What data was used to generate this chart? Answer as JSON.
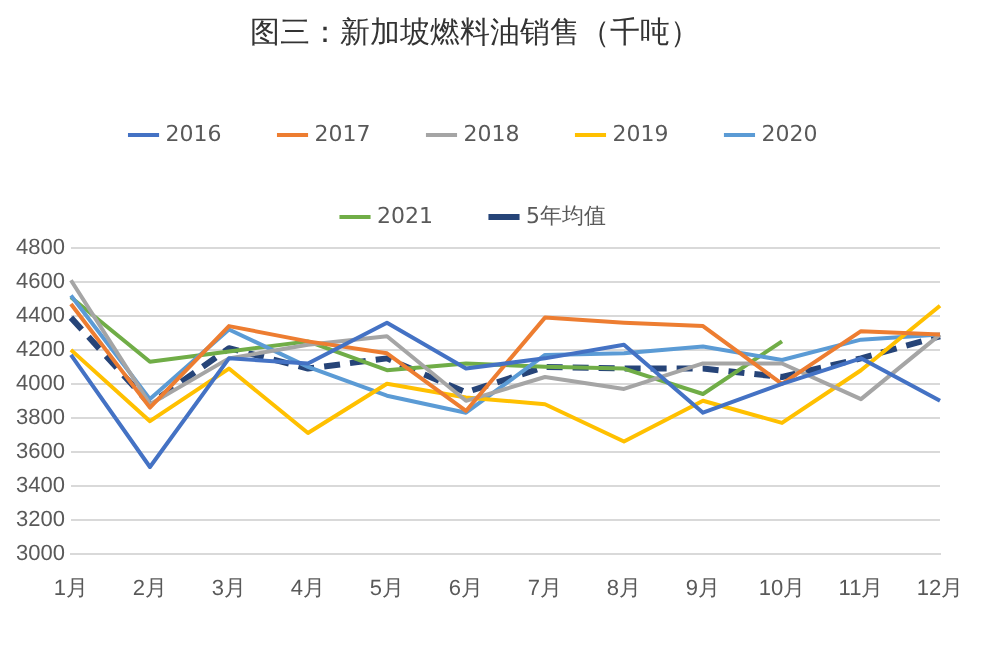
{
  "chart_data": {
    "type": "line",
    "title": "图三：新加坡燃料油销售（千吨）",
    "categories": [
      "1月",
      "2月",
      "3月",
      "4月",
      "5月",
      "6月",
      "7月",
      "8月",
      "9月",
      "10月",
      "11月",
      "12月"
    ],
    "series": [
      {
        "name": "2016",
        "color": "#4472c4",
        "values": [
          4170,
          3510,
          4150,
          4120,
          4360,
          4090,
          4150,
          4230,
          3830,
          4000,
          4150,
          3900
        ]
      },
      {
        "name": "2017",
        "color": "#ed7d31",
        "values": [
          4470,
          3860,
          4340,
          4250,
          4180,
          3840,
          4390,
          4360,
          4340,
          4000,
          4310,
          4290
        ]
      },
      {
        "name": "2018",
        "color": "#a5a5a5",
        "values": [
          4610,
          3880,
          4150,
          4230,
          4280,
          3900,
          4040,
          3970,
          4120,
          4120,
          3910,
          4290
        ]
      },
      {
        "name": "2019",
        "color": "#ffc000",
        "values": [
          4200,
          3780,
          4090,
          3710,
          4000,
          3920,
          3880,
          3660,
          3900,
          3770,
          4080,
          4460
        ]
      },
      {
        "name": "2020",
        "color": "#5b9bd5",
        "values": [
          4520,
          3910,
          4320,
          4100,
          3930,
          3830,
          4170,
          4180,
          4220,
          4140,
          4260,
          4290
        ]
      },
      {
        "name": "2021",
        "color": "#70ad47",
        "values": [
          4510,
          4130,
          4190,
          4250,
          4080,
          4120,
          4100,
          4090,
          3940,
          4250,
          null,
          null
        ]
      },
      {
        "name": "5年均值",
        "color": "#264478",
        "line_style": "dashed",
        "values": [
          4390,
          3880,
          4210,
          4090,
          4150,
          3950,
          4100,
          4090,
          4090,
          4040,
          4150,
          4280
        ]
      }
    ],
    "ylim": [
      3000,
      4800
    ],
    "yticks": [
      3000,
      3200,
      3400,
      3600,
      3800,
      4000,
      4200,
      4400,
      4600,
      4800
    ],
    "grid": "y",
    "legend": "top",
    "marker": "none",
    "line_style": "solid"
  }
}
